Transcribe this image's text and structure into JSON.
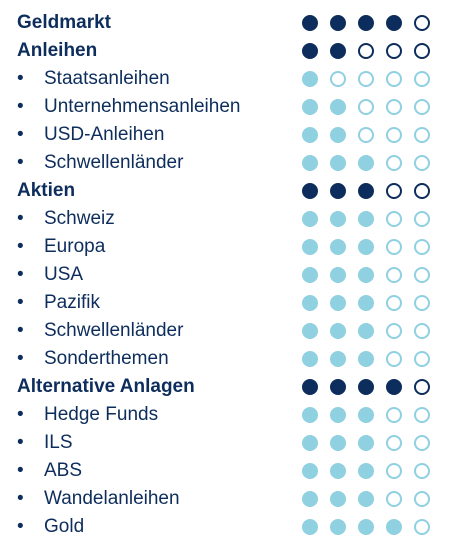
{
  "colors": {
    "category_dot": "#0d2d5c",
    "subcategory_dot": "#8fd0e1",
    "text": "#0d2d5c"
  },
  "bullet_char": "•",
  "rows": [
    {
      "type": "category",
      "label": "Geldmarkt",
      "rating": 4
    },
    {
      "type": "category",
      "label": "Anleihen",
      "rating": 2
    },
    {
      "type": "sub",
      "label": "Staatsanleihen",
      "rating": 1
    },
    {
      "type": "sub",
      "label": "Unternehmensanleihen",
      "rating": 2
    },
    {
      "type": "sub",
      "label": "USD-Anleihen",
      "rating": 2
    },
    {
      "type": "sub",
      "label": "Schwellenländer",
      "rating": 3
    },
    {
      "type": "category",
      "label": "Aktien",
      "rating": 3
    },
    {
      "type": "sub",
      "label": "Schweiz",
      "rating": 3
    },
    {
      "type": "sub",
      "label": "Europa",
      "rating": 3
    },
    {
      "type": "sub",
      "label": "USA",
      "rating": 3
    },
    {
      "type": "sub",
      "label": "Pazifik",
      "rating": 3
    },
    {
      "type": "sub",
      "label": "Schwellenländer",
      "rating": 3
    },
    {
      "type": "sub",
      "label": "Sonderthemen",
      "rating": 3
    },
    {
      "type": "category",
      "label": "Alternative Anlagen",
      "rating": 4
    },
    {
      "type": "sub",
      "label": "Hedge Funds",
      "rating": 3
    },
    {
      "type": "sub",
      "label": "ILS",
      "rating": 3
    },
    {
      "type": "sub",
      "label": "ABS",
      "rating": 3
    },
    {
      "type": "sub",
      "label": "Wandelanleihen",
      "rating": 3
    },
    {
      "type": "sub",
      "label": "Gold",
      "rating": 4
    }
  ],
  "max_rating": 5
}
